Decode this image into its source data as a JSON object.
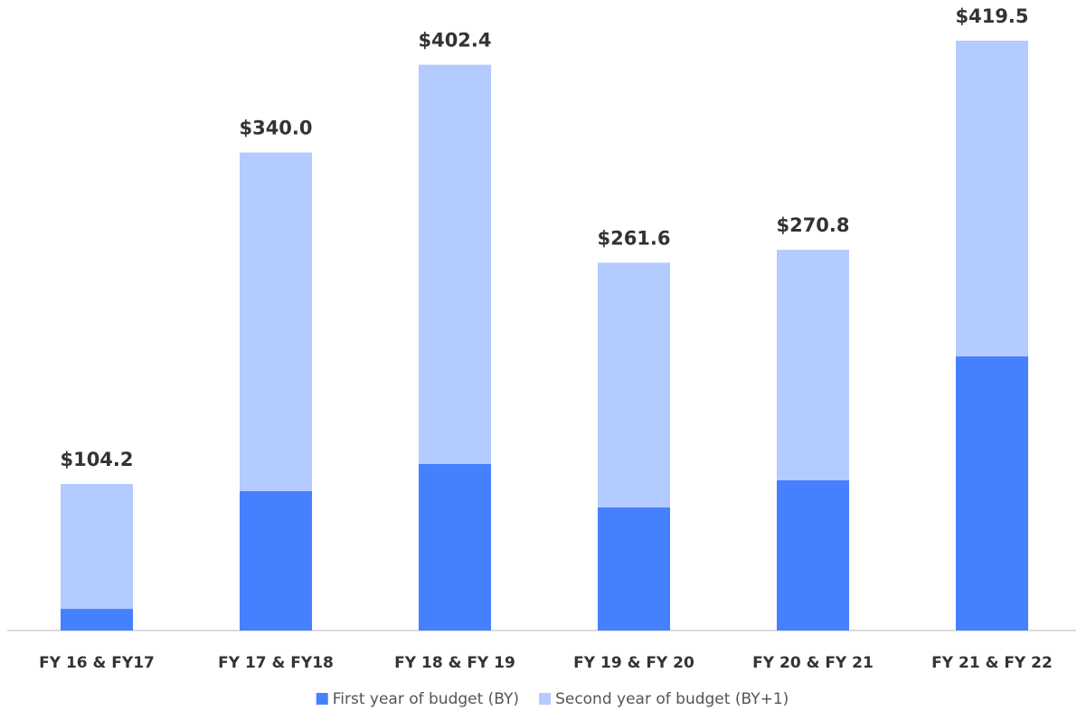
{
  "chart_data": {
    "type": "stacked_bar",
    "categories": [
      "FY 16 & FY17",
      "FY 17 & FY18",
      "FY 18 & FY 19",
      "FY 19 & FY 20",
      "FY 20 & FY 21",
      "FY 21 & FY 22"
    ],
    "series": [
      {
        "name": "First year of budget (BY)",
        "color": "#4580ff",
        "values": [
          15.4,
          99.1,
          118.4,
          87.5,
          106.8,
          195.0
        ]
      },
      {
        "name": "Second year of budget (BY+1)",
        "color": "#b3cbff",
        "values": [
          88.8,
          240.9,
          284.0,
          174.1,
          164.0,
          224.5
        ]
      }
    ],
    "totals": [
      104.2,
      340.0,
      402.4,
      261.6,
      270.8,
      419.5
    ],
    "total_labels": [
      "$104.2",
      "$340.0",
      "$402.4",
      "$261.6",
      "$270.8",
      "$419.5"
    ],
    "legend": "bottom"
  }
}
